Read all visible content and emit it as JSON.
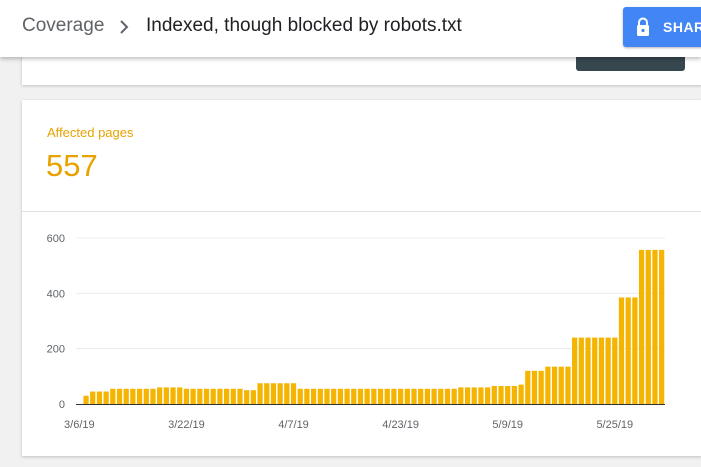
{
  "header": {
    "breadcrumb_root": "Coverage",
    "breadcrumb_separator_icon": "chevron-right-icon",
    "breadcrumb_current": "Indexed, though blocked by robots.txt",
    "share_label": "SHAR",
    "share_icon": "lock-icon",
    "share_color": "#4285f4"
  },
  "metric": {
    "label": "Affected pages",
    "value": "557",
    "color": "#e8a200"
  },
  "chart_data": {
    "type": "bar",
    "color": "#f4b400",
    "ylim": [
      0,
      600
    ],
    "yticks": [
      0,
      200,
      400,
      600
    ],
    "grid": true,
    "xtick_labels": [
      {
        "label": "3/6/19",
        "index": 0
      },
      {
        "label": "3/22/19",
        "index": 16
      },
      {
        "label": "4/7/19",
        "index": 32
      },
      {
        "label": "4/23/19",
        "index": 48
      },
      {
        "label": "5/9/19",
        "index": 64
      },
      {
        "label": "5/25/19",
        "index": 80
      }
    ],
    "values": [
      0,
      30,
      45,
      45,
      45,
      55,
      55,
      55,
      55,
      55,
      55,
      55,
      60,
      60,
      60,
      60,
      55,
      55,
      55,
      55,
      55,
      55,
      55,
      55,
      55,
      50,
      50,
      75,
      75,
      75,
      75,
      75,
      75,
      55,
      55,
      55,
      55,
      55,
      55,
      55,
      55,
      55,
      55,
      55,
      55,
      55,
      55,
      55,
      55,
      55,
      55,
      55,
      55,
      55,
      55,
      55,
      55,
      60,
      60,
      60,
      60,
      60,
      65,
      65,
      65,
      65,
      70,
      120,
      120,
      120,
      135,
      135,
      135,
      135,
      240,
      240,
      240,
      240,
      240,
      240,
      240,
      385,
      385,
      385,
      557,
      557,
      557,
      557
    ]
  }
}
